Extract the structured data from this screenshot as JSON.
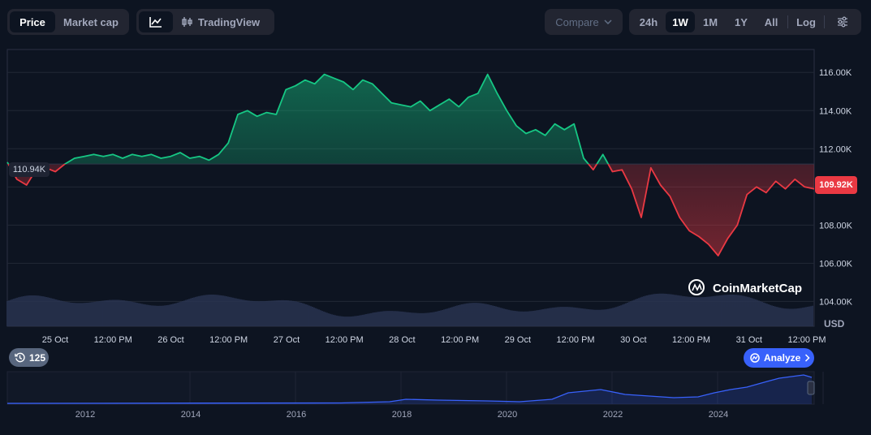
{
  "toolbar": {
    "view_tabs": [
      "Price",
      "Market cap"
    ],
    "active_view": "Price",
    "line_icon": "line-chart-icon",
    "tradingview_label": "TradingView",
    "tradingview_icon": "candlestick-icon",
    "compare_label": "Compare",
    "ranges": [
      "24h",
      "1W",
      "1M",
      "1Y",
      "All"
    ],
    "active_range": "1W",
    "log_label": "Log",
    "settings_icon": "sliders-icon"
  },
  "price_badge": {
    "current": "109.92K",
    "reference": "110.94K"
  },
  "watermark": "CoinMarketCap",
  "history_badge": {
    "icon": "history-icon",
    "count": "125"
  },
  "analyze_label": "Analyze",
  "colors": {
    "background": "#0d1421",
    "up": "#16c784",
    "down": "#ea3943",
    "volume": "#2a3553",
    "navigator": "#3861fb",
    "accent": "#3861fb"
  },
  "chart_data": {
    "type": "line",
    "currency_label": "USD",
    "y_ticks": [
      "104.00K",
      "106.00K",
      "108.00K",
      "110.00K",
      "112.00K",
      "114.00K",
      "116.00K"
    ],
    "ylim": [
      102.7,
      117.2
    ],
    "baseline": 111.2,
    "x_ticks": [
      "25 Oct",
      "12:00 PM",
      "26 Oct",
      "12:00 PM",
      "27 Oct",
      "12:00 PM",
      "28 Oct",
      "12:00 PM",
      "29 Oct",
      "12:00 PM",
      "30 Oct",
      "12:00 PM",
      "31 Oct",
      "12:00 PM"
    ],
    "series": [
      {
        "x": [
          0,
          2,
          4,
          6,
          8,
          10,
          12,
          14,
          16,
          18,
          20,
          22,
          24,
          26,
          28,
          30,
          32,
          34,
          36,
          38,
          40,
          42,
          44,
          46,
          48,
          50,
          52,
          54,
          56,
          58,
          60,
          62,
          64,
          66,
          68,
          70,
          72,
          74,
          76,
          78,
          80,
          82,
          84,
          86,
          88,
          90,
          92,
          94,
          96,
          98,
          100,
          102,
          104,
          106,
          108,
          110,
          112,
          114,
          116,
          118,
          120,
          122,
          124,
          126,
          128,
          130,
          132,
          134,
          136,
          138,
          140,
          142,
          144,
          146,
          148,
          150,
          152,
          154,
          156,
          158,
          160,
          162,
          164,
          166,
          168
        ],
        "y": [
          111.3,
          110.4,
          110.1,
          110.9,
          111.0,
          110.8,
          111.2,
          111.5,
          111.6,
          111.7,
          111.6,
          111.7,
          111.5,
          111.7,
          111.6,
          111.7,
          111.5,
          111.6,
          111.8,
          111.5,
          111.6,
          111.4,
          111.7,
          112.3,
          113.8,
          114.0,
          113.7,
          113.9,
          113.8,
          115.1,
          115.3,
          115.6,
          115.4,
          115.9,
          115.7,
          115.5,
          115.1,
          115.6,
          115.4,
          114.9,
          114.4,
          114.3,
          114.2,
          114.5,
          114.0,
          114.3,
          114.6,
          114.2,
          114.7,
          114.9,
          115.9,
          114.9,
          114.0,
          113.2,
          112.8,
          113.0,
          112.7,
          113.3,
          113.0,
          113.3,
          111.5,
          110.9,
          111.7,
          110.8,
          110.9,
          109.9,
          108.4,
          111.0,
          110.1,
          109.5,
          108.4,
          107.7,
          107.4,
          107.0,
          106.4,
          107.3,
          108.0,
          109.6,
          110.0,
          109.7,
          110.3,
          109.9,
          110.4,
          110.0,
          109.9
        ]
      }
    ],
    "navigator_x_ticks": [
      "2012",
      "2014",
      "2016",
      "2018",
      "2020",
      "2022",
      "2024"
    ]
  }
}
